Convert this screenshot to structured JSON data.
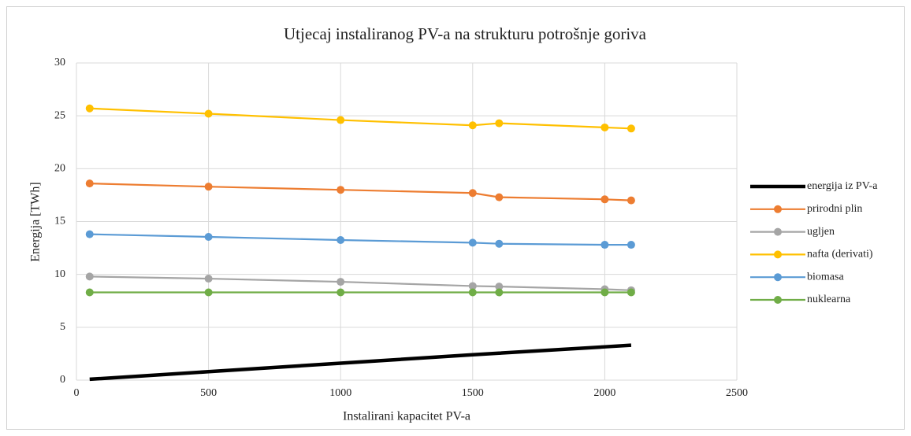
{
  "chart_data": {
    "type": "line",
    "title": "Utjecaj instaliranog PV-a na strukturu potrošnje goriva",
    "x_label": "Instalirani kapacitet PV-a",
    "y_label": "Energija [TWh]",
    "x": [
      50,
      500,
      1000,
      1500,
      1600,
      2000,
      2100
    ],
    "xlim": [
      0,
      2500
    ],
    "xticks": [
      0,
      500,
      1000,
      1500,
      2000,
      2500
    ],
    "ylim": [
      0,
      30
    ],
    "yticks": [
      0,
      5,
      10,
      15,
      20,
      25,
      30
    ],
    "grid": true,
    "legend": "right",
    "series": [
      {
        "name": "energija iz PV-a",
        "color": "#000000",
        "markers": false,
        "values": [
          0.08,
          0.8,
          1.6,
          2.4,
          2.55,
          3.15,
          3.3
        ]
      },
      {
        "name": "prirodni plin",
        "color": "#ED7D31",
        "markers": true,
        "values": [
          18.6,
          18.3,
          18.0,
          17.7,
          17.3,
          17.1,
          17.0
        ]
      },
      {
        "name": "ugljen",
        "color": "#A5A5A5",
        "markers": true,
        "values": [
          9.8,
          9.6,
          9.3,
          8.9,
          8.85,
          8.6,
          8.5
        ]
      },
      {
        "name": "nafta (derivati)",
        "color": "#FFC000",
        "markers": true,
        "values": [
          25.7,
          25.2,
          24.6,
          24.1,
          24.3,
          23.9,
          23.8
        ]
      },
      {
        "name": "biomasa",
        "color": "#5B9BD5",
        "markers": true,
        "values": [
          13.8,
          13.55,
          13.25,
          13.0,
          12.9,
          12.8,
          12.8
        ]
      },
      {
        "name": "nuklearna",
        "color": "#70AD47",
        "markers": true,
        "values": [
          8.3,
          8.3,
          8.3,
          8.3,
          8.3,
          8.3,
          8.3
        ]
      }
    ]
  }
}
